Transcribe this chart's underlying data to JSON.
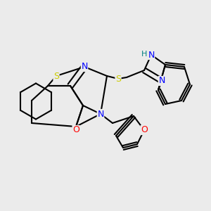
{
  "background_color": "#ebebeb",
  "atom_colors": {
    "C": "#000000",
    "N": "#0000ff",
    "O": "#ff0000",
    "S": "#cccc00",
    "H": "#008080"
  },
  "bond_color": "#000000",
  "bond_width": 1.5,
  "font_size": 9
}
